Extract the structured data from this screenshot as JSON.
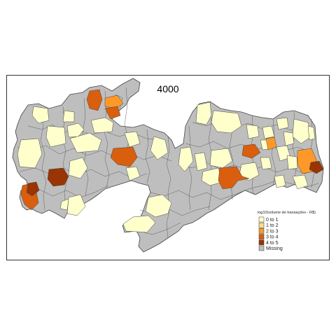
{
  "map": {
    "title": "4000",
    "region_fill_missing": "#bebebe",
    "border_color": "#555555"
  },
  "legend": {
    "title": "log10(volume de transações - R$)",
    "classes": [
      {
        "label": "0 to 1",
        "color": "#ffffcc"
      },
      {
        "label": "1 to 2",
        "color": "#fed98e"
      },
      {
        "label": "2 to 3",
        "color": "#fe9929"
      },
      {
        "label": "3 to 4",
        "color": "#d95f0e"
      },
      {
        "label": "4 to 5",
        "color": "#993404"
      },
      {
        "label": "Missing",
        "color": "#bebebe"
      }
    ]
  }
}
